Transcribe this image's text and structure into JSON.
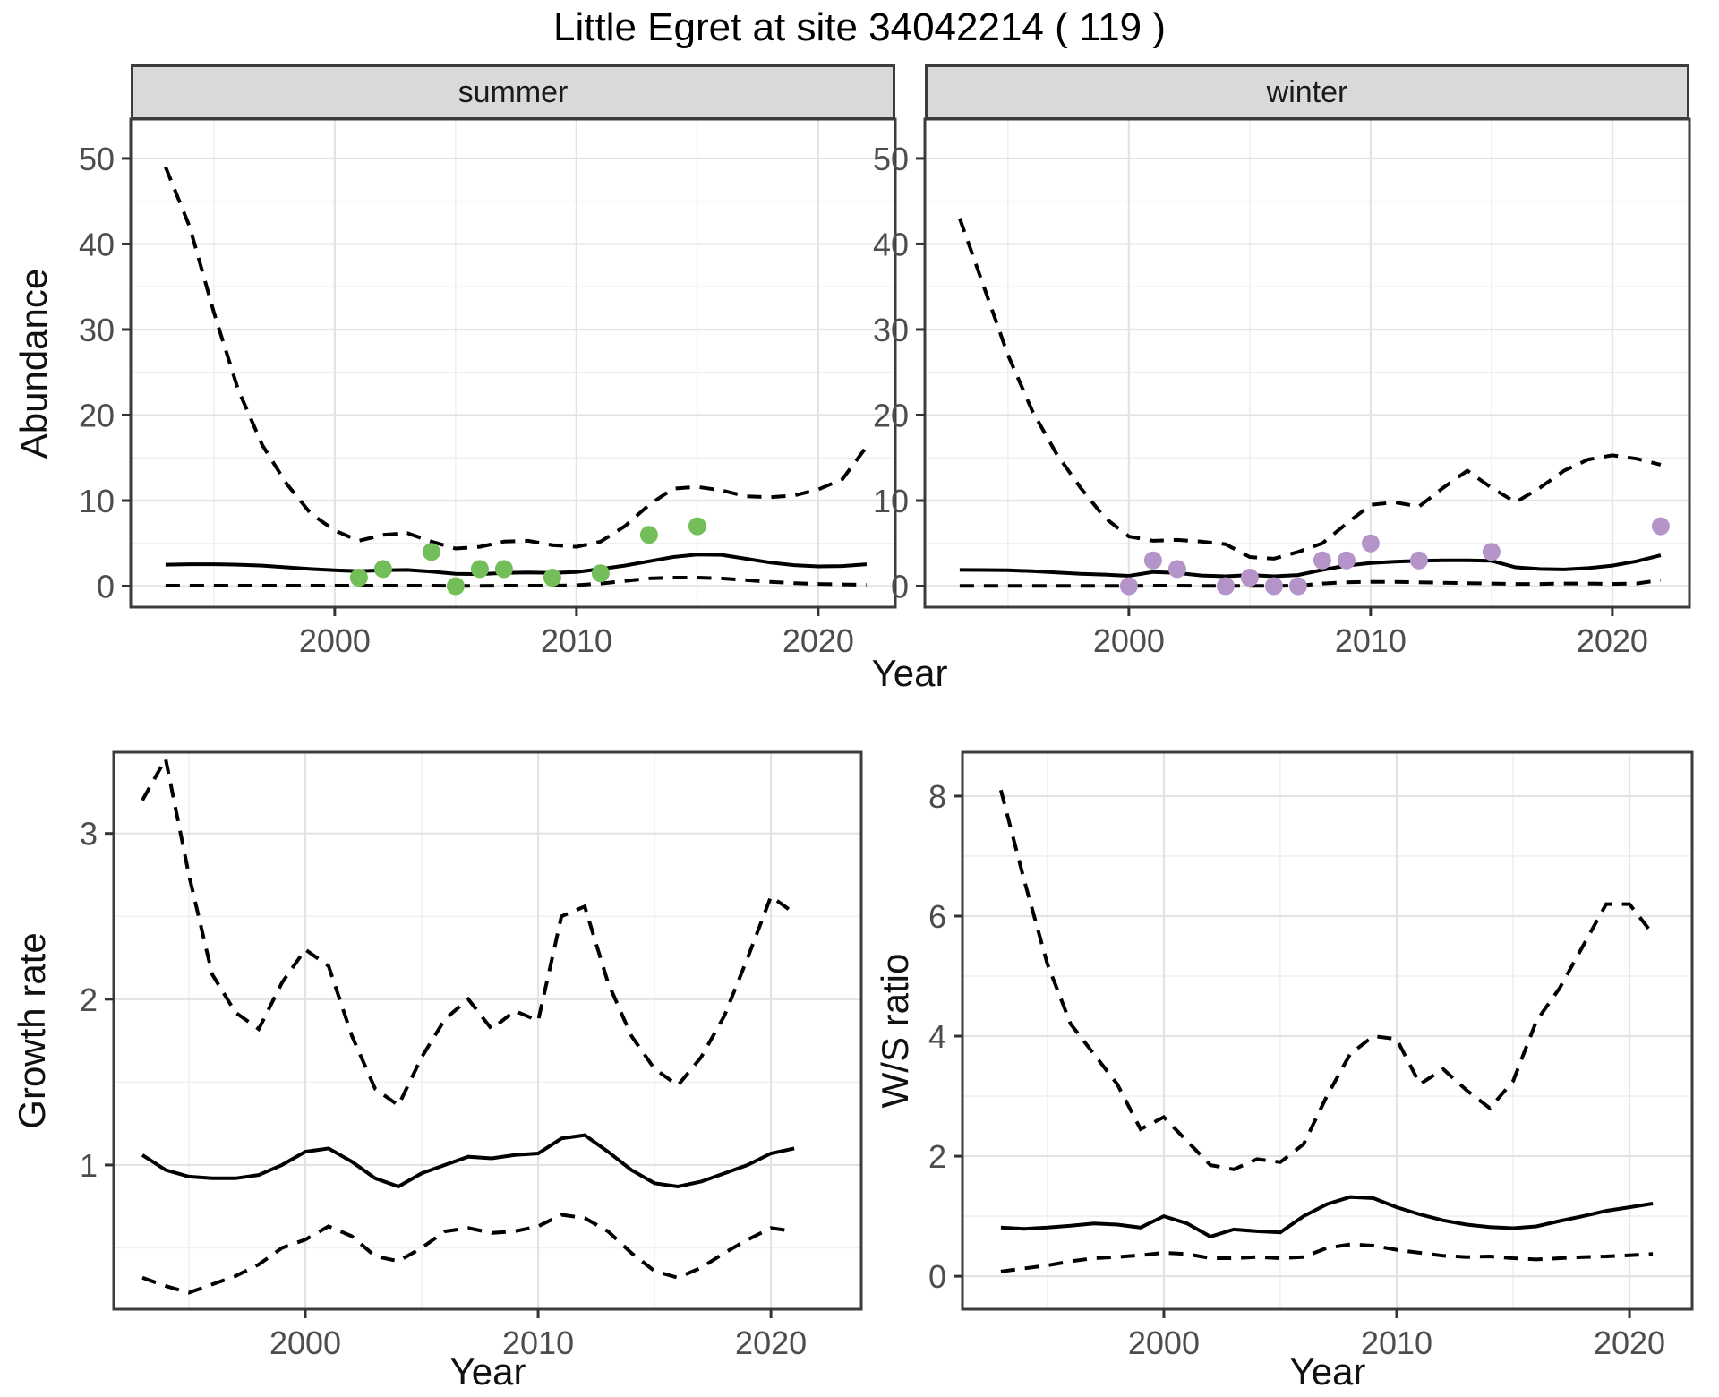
{
  "title": "Little Egret at site 34042214 ( 119 )",
  "facets": [
    "summer",
    "winter"
  ],
  "labels": {
    "y_abundance": "Abundance",
    "x_year": "Year",
    "y_growth": "Growth rate",
    "y_ws": "W/S ratio"
  },
  "colors": {
    "summer_points": "#73BE58",
    "winter_points": "#B494C9",
    "line": "#000000",
    "strip_bg": "#d9d9d9",
    "grid_major": "#e3e3e3",
    "grid_minor": "#f0f0f0",
    "panel_border": "#3c3c3c",
    "tick_text": "#4d4d4d"
  },
  "chart_data": [
    {
      "id": "abundance-summer",
      "type": "line",
      "facet": "summer",
      "xlabel": "Year",
      "ylabel": "Abundance",
      "xlim": [
        1991.56,
        2023.19
      ],
      "ylim": [
        -2.46,
        54.6
      ],
      "x_ticks": [
        2000,
        2010,
        2020
      ],
      "x_minor": [
        1995,
        2005,
        2015
      ],
      "y_ticks": [
        0,
        10,
        20,
        30,
        40,
        50
      ],
      "y_minor": [
        5,
        15,
        25,
        35,
        45
      ],
      "x": [
        1993,
        1994,
        1995,
        1996,
        1997,
        1998,
        1999,
        2000,
        2001,
        2002,
        2003,
        2004,
        2005,
        2006,
        2007,
        2008,
        2009,
        2010,
        2011,
        2012,
        2013,
        2014,
        2015,
        2016,
        2017,
        2018,
        2019,
        2020,
        2021,
        2022
      ],
      "series": [
        {
          "name": "upper-95ci",
          "style": "dashed",
          "values": [
            49,
            42,
            32,
            23,
            16.5,
            12,
            8.5,
            6.5,
            5.3,
            6,
            6.2,
            5.2,
            4.4,
            4.6,
            5.2,
            5.3,
            4.8,
            4.6,
            5.2,
            7,
            9.5,
            11.4,
            11.6,
            11.2,
            10.5,
            10.4,
            10.6,
            11.3,
            12.5,
            16.3
          ]
        },
        {
          "name": "fitted",
          "style": "solid",
          "values": [
            2.5,
            2.55,
            2.55,
            2.5,
            2.4,
            2.2,
            2.0,
            1.85,
            1.75,
            1.85,
            1.9,
            1.7,
            1.45,
            1.4,
            1.55,
            1.6,
            1.55,
            1.65,
            2.0,
            2.4,
            2.9,
            3.4,
            3.7,
            3.65,
            3.2,
            2.75,
            2.45,
            2.3,
            2.35,
            2.55
          ]
        },
        {
          "name": "lower-95ci",
          "style": "dashed",
          "values": [
            0.05,
            0.05,
            0.05,
            0.05,
            0.05,
            0.05,
            0.05,
            0.05,
            0.05,
            0.05,
            0.05,
            0.05,
            0.02,
            0.02,
            0.05,
            0.05,
            0.05,
            0.1,
            0.3,
            0.6,
            0.9,
            1.0,
            1.0,
            0.9,
            0.7,
            0.5,
            0.35,
            0.25,
            0.2,
            0.15
          ]
        }
      ],
      "points": {
        "name": "observed-summer-counts",
        "color": "#73BE58",
        "x": [
          2001,
          2002,
          2004,
          2005,
          2006,
          2007,
          2009,
          2011,
          2013,
          2015
        ],
        "y": [
          1,
          2,
          4,
          0,
          2,
          2,
          1,
          1.5,
          6,
          7
        ]
      }
    },
    {
      "id": "abundance-winter",
      "type": "line",
      "facet": "winter",
      "xlabel": "Year",
      "ylabel": "Abundance",
      "xlim": [
        1991.56,
        2023.19
      ],
      "ylim": [
        -2.46,
        54.6
      ],
      "x_ticks": [
        2000,
        2010,
        2020
      ],
      "x_minor": [
        1995,
        2005,
        2015
      ],
      "y_ticks": [
        0,
        10,
        20,
        30,
        40,
        50
      ],
      "y_minor": [
        5,
        15,
        25,
        35,
        45
      ],
      "x": [
        1993,
        1994,
        1995,
        1996,
        1997,
        1998,
        1999,
        2000,
        2001,
        2002,
        2003,
        2004,
        2005,
        2006,
        2007,
        2008,
        2009,
        2010,
        2011,
        2012,
        2013,
        2014,
        2015,
        2016,
        2017,
        2018,
        2019,
        2020,
        2021,
        2022
      ],
      "series": [
        {
          "name": "upper-95ci",
          "style": "dashed",
          "values": [
            43,
            35,
            27,
            20.5,
            15.5,
            11.5,
            8,
            5.8,
            5.3,
            5.4,
            5.2,
            4.9,
            3.4,
            3.2,
            4,
            5,
            7.3,
            9.5,
            9.8,
            9.3,
            11.5,
            13.5,
            11.5,
            9.8,
            11.5,
            13.5,
            14.8,
            15.3,
            14.9,
            14.2
          ]
        },
        {
          "name": "fitted",
          "style": "solid",
          "values": [
            1.9,
            1.88,
            1.85,
            1.75,
            1.6,
            1.45,
            1.35,
            1.2,
            1.65,
            1.55,
            1.25,
            1.15,
            1.3,
            1.15,
            1.3,
            1.9,
            2.4,
            2.7,
            2.85,
            2.95,
            3.0,
            3.0,
            2.95,
            2.2,
            2.0,
            1.95,
            2.1,
            2.4,
            2.9,
            3.6
          ]
        },
        {
          "name": "lower-95ci",
          "style": "dashed",
          "values": [
            0.02,
            0.02,
            0.02,
            0.02,
            0.02,
            0.02,
            0.02,
            0.02,
            0.05,
            0.05,
            0.02,
            0.02,
            0.02,
            0.02,
            0.05,
            0.3,
            0.45,
            0.5,
            0.5,
            0.45,
            0.4,
            0.35,
            0.3,
            0.25,
            0.25,
            0.3,
            0.3,
            0.25,
            0.3,
            0.7
          ]
        }
      ],
      "points": {
        "name": "observed-winter-counts",
        "color": "#B494C9",
        "x": [
          2000,
          2001,
          2002,
          2004,
          2005,
          2006,
          2007,
          2008,
          2009,
          2010,
          2012,
          2015,
          2022
        ],
        "y": [
          0,
          3,
          2,
          0,
          1,
          0,
          0,
          3,
          3,
          5,
          3,
          4,
          7
        ]
      }
    },
    {
      "id": "growth-rate",
      "type": "line",
      "facet": null,
      "xlabel": "Year",
      "ylabel": "Growth rate",
      "xlim": [
        1991.77,
        2023.88
      ],
      "ylim": [
        0.13,
        3.49
      ],
      "x_ticks": [
        2000,
        2010,
        2020
      ],
      "x_minor": [
        1995,
        2005,
        2015
      ],
      "y_ticks": [
        1,
        2,
        3
      ],
      "y_minor": [
        0.5,
        1.5,
        2.5
      ],
      "x": [
        1993,
        1994,
        1995,
        1996,
        1997,
        1998,
        1999,
        2000,
        2001,
        2002,
        2003,
        2004,
        2005,
        2006,
        2007,
        2008,
        2009,
        2010,
        2011,
        2012,
        2013,
        2014,
        2015,
        2016,
        2017,
        2018,
        2019,
        2020,
        2021
      ],
      "series": [
        {
          "name": "upper-95ci",
          "style": "dashed",
          "values": [
            3.2,
            3.45,
            2.75,
            2.15,
            1.92,
            1.82,
            2.1,
            2.3,
            2.2,
            1.78,
            1.46,
            1.36,
            1.65,
            1.88,
            2.0,
            1.82,
            1.93,
            1.87,
            2.5,
            2.56,
            2.1,
            1.78,
            1.58,
            1.48,
            1.65,
            1.9,
            2.25,
            2.62,
            2.52
          ]
        },
        {
          "name": "fitted",
          "style": "solid",
          "values": [
            1.06,
            0.97,
            0.93,
            0.92,
            0.92,
            0.94,
            1.0,
            1.08,
            1.1,
            1.02,
            0.92,
            0.87,
            0.95,
            1.0,
            1.05,
            1.04,
            1.06,
            1.07,
            1.16,
            1.18,
            1.08,
            0.97,
            0.89,
            0.87,
            0.9,
            0.95,
            1.0,
            1.07,
            1.1
          ]
        },
        {
          "name": "lower-95ci",
          "style": "dashed",
          "values": [
            0.32,
            0.27,
            0.23,
            0.28,
            0.33,
            0.4,
            0.5,
            0.55,
            0.63,
            0.57,
            0.45,
            0.42,
            0.5,
            0.6,
            0.62,
            0.59,
            0.6,
            0.63,
            0.7,
            0.68,
            0.6,
            0.47,
            0.36,
            0.32,
            0.38,
            0.47,
            0.55,
            0.62,
            0.6
          ]
        }
      ],
      "points": null
    },
    {
      "id": "ws-ratio",
      "type": "line",
      "facet": null,
      "xlabel": "Year",
      "ylabel": "W/S ratio",
      "xlim": [
        1991.35,
        2022.69
      ],
      "ylim": [
        -0.55,
        8.73
      ],
      "x_ticks": [
        2000,
        2010,
        2020
      ],
      "x_minor": [
        1995,
        2005,
        2015
      ],
      "y_ticks": [
        0,
        2,
        4,
        6,
        8
      ],
      "y_minor": [
        1,
        3,
        5,
        7
      ],
      "x": [
        1993,
        1994,
        1995,
        1996,
        1997,
        1998,
        1999,
        2000,
        2001,
        2002,
        2003,
        2004,
        2005,
        2006,
        2007,
        2008,
        2009,
        2010,
        2011,
        2012,
        2013,
        2014,
        2015,
        2016,
        2017,
        2018,
        2019,
        2020,
        2021
      ],
      "series": [
        {
          "name": "upper-95ci",
          "style": "dashed",
          "values": [
            8.1,
            6.6,
            5.2,
            4.2,
            3.7,
            3.2,
            2.45,
            2.65,
            2.25,
            1.85,
            1.78,
            1.95,
            1.9,
            2.2,
            3.0,
            3.7,
            4.0,
            3.95,
            3.2,
            3.45,
            3.1,
            2.8,
            3.25,
            4.25,
            4.8,
            5.5,
            6.2,
            6.2,
            5.7
          ]
        },
        {
          "name": "fitted",
          "style": "solid",
          "values": [
            0.81,
            0.79,
            0.81,
            0.84,
            0.88,
            0.86,
            0.81,
            1.0,
            0.88,
            0.66,
            0.78,
            0.75,
            0.73,
            1.0,
            1.2,
            1.32,
            1.3,
            1.15,
            1.03,
            0.93,
            0.86,
            0.82,
            0.8,
            0.83,
            0.92,
            1.0,
            1.09,
            1.15,
            1.21
          ]
        },
        {
          "name": "lower-95ci",
          "style": "dashed",
          "values": [
            0.08,
            0.13,
            0.18,
            0.25,
            0.3,
            0.32,
            0.35,
            0.39,
            0.37,
            0.3,
            0.3,
            0.32,
            0.3,
            0.32,
            0.47,
            0.53,
            0.51,
            0.44,
            0.39,
            0.34,
            0.32,
            0.33,
            0.3,
            0.28,
            0.3,
            0.32,
            0.33,
            0.35,
            0.37
          ]
        }
      ],
      "points": null
    }
  ]
}
